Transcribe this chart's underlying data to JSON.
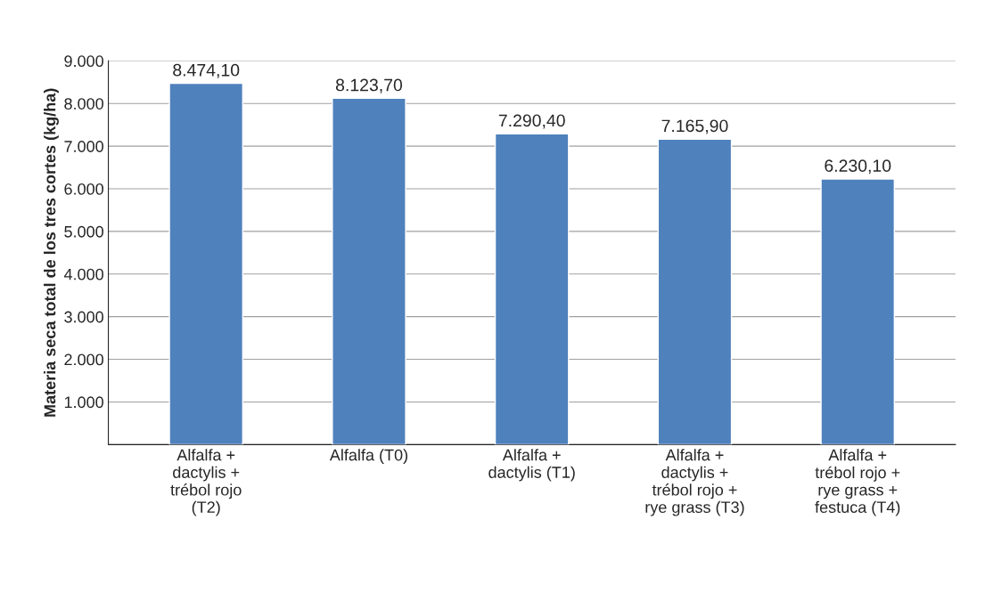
{
  "chart_data": {
    "type": "bar",
    "ylabel": "Materia seca total de los tres cortes (kg/ha)",
    "categories": [
      "Alfalfa +\ndactylis +\ntrébol rojo\n(T2)",
      "Alfalfa (T0)",
      "Alfalfa +\ndactylis (T1)",
      "Alfalfa +\ndactylis +\ntrébol rojo +\nrye grass (T3)",
      "Alfalfa +\ntrébol rojo +\nrye grass +\nfestuca (T4)"
    ],
    "values": [
      8474.1,
      8123.7,
      7290.4,
      7165.9,
      6230.1
    ],
    "value_labels": [
      "8.474,10",
      "8.123,70",
      "7.290,40",
      "7.165,90",
      "6.230,10"
    ],
    "color": "#4f81bd",
    "ylim": [
      0,
      9000
    ],
    "yticks": [
      {
        "value": 0,
        "label": null
      },
      {
        "value": 1000,
        "label": "1.000"
      },
      {
        "value": 2000,
        "label": "2.000"
      },
      {
        "value": 3000,
        "label": "3.000"
      },
      {
        "value": 4000,
        "label": "4.000"
      },
      {
        "value": 5000,
        "label": "5.000"
      },
      {
        "value": 6000,
        "label": "6.000"
      },
      {
        "value": 7000,
        "label": "7.000"
      },
      {
        "value": 8000,
        "label": "8.000"
      },
      {
        "value": 9000,
        "label": "9.000"
      }
    ],
    "grid": "y",
    "legend": false
  }
}
